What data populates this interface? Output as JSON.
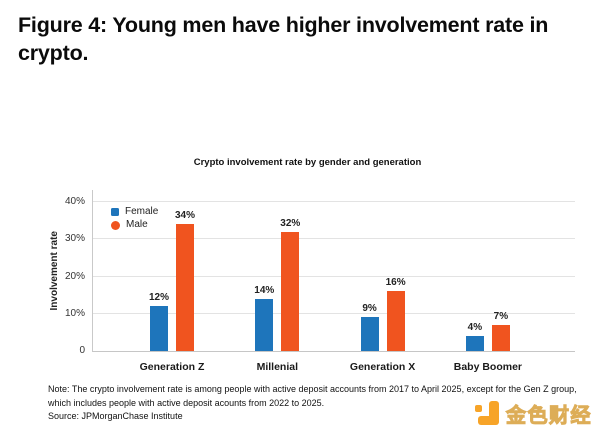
{
  "figure": {
    "title": "Figure 4: Young men have higher involvement rate in\ncrypto."
  },
  "chart_data": {
    "type": "bar",
    "title": "Crypto involvement rate by gender and generation",
    "xlabel": "",
    "ylabel": "Involvement rate",
    "categories": [
      "Generation Z",
      "Millenial",
      "Generation X",
      "Baby Boomer"
    ],
    "series": [
      {
        "name": "Female",
        "marker": "square",
        "color": "#1e75bb",
        "values": [
          12,
          14,
          9,
          4
        ]
      },
      {
        "name": "Male",
        "marker": "circle",
        "color": "#f0541f",
        "values": [
          34,
          32,
          16,
          7
        ]
      }
    ],
    "value_suffix": "%",
    "ylim": [
      0,
      43.5
    ],
    "yticks": [
      {
        "value": 0,
        "label": "0"
      },
      {
        "value": 10,
        "label": "10%"
      },
      {
        "value": 20,
        "label": "20%"
      },
      {
        "value": 30,
        "label": "30%"
      },
      {
        "value": 40,
        "label": "40%"
      }
    ],
    "grid": true,
    "legend_position": "upper-left-inside"
  },
  "note": "Note: The crypto involvement rate is among people with active deposit accounts from 2017 to April 2025, except for the Gen Z group,\nwhich includes people with active deposit acounts from 2022 to 2025.",
  "source": "Source: JPMorganChase Institute",
  "watermark": {
    "text": "金色财经",
    "icon": "jinse-logo-icon",
    "icon_color": "#f7a428",
    "text_color": "#f0d49a"
  }
}
